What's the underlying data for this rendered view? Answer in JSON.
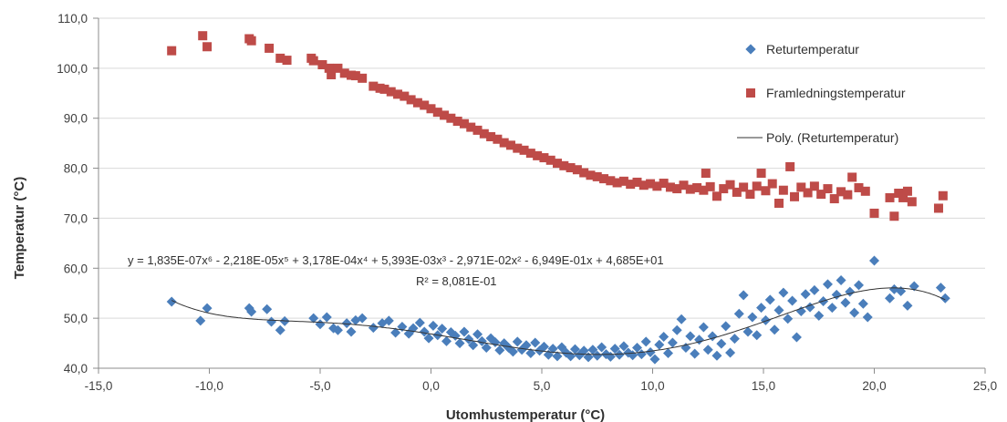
{
  "chart_data": {
    "type": "scatter",
    "xlabel": "Utomhustemperatur (°C)",
    "ylabel": "Temperatur (°C)",
    "xlim": [
      -15,
      25
    ],
    "ylim": [
      40,
      110
    ],
    "x_ticks": [
      -15,
      -10,
      -5,
      0,
      5,
      10,
      15,
      20,
      25
    ],
    "x_tick_labels": [
      "-15,0",
      "-10,0",
      "-5,0",
      "0,0",
      "5,0",
      "10,0",
      "15,0",
      "20,0",
      "25,0"
    ],
    "y_ticks": [
      40,
      50,
      60,
      70,
      80,
      90,
      100,
      110
    ],
    "y_tick_labels": [
      "40,0",
      "50,0",
      "60,0",
      "70,0",
      "80,0",
      "90,0",
      "100,0",
      "110,0"
    ],
    "grid": "horizontal",
    "legend_position": "top-right",
    "series": [
      {
        "name": "Returtemperatur",
        "marker": "diamond",
        "color": "#4a7ebb",
        "points": [
          [
            -11.7,
            53.3
          ],
          [
            -10.4,
            49.5
          ],
          [
            -10.1,
            52
          ],
          [
            -8.2,
            52
          ],
          [
            -8.1,
            51.3
          ],
          [
            -7.4,
            51.8
          ],
          [
            -7.2,
            49.3
          ],
          [
            -6.8,
            47.6
          ],
          [
            -6.6,
            49.4
          ],
          [
            -5.3,
            50
          ],
          [
            -5,
            48.8
          ],
          [
            -4.7,
            50.2
          ],
          [
            -4.4,
            48
          ],
          [
            -4.2,
            47.6
          ],
          [
            -3.8,
            49
          ],
          [
            -3.6,
            47.3
          ],
          [
            -3.4,
            49.6
          ],
          [
            -3.1,
            50
          ],
          [
            -2.6,
            48.1
          ],
          [
            -2.2,
            49
          ],
          [
            -1.9,
            49.5
          ],
          [
            -1.6,
            47.1
          ],
          [
            -1.3,
            48.3
          ],
          [
            -1,
            46.9
          ],
          [
            -0.8,
            48
          ],
          [
            -0.5,
            49.1
          ],
          [
            -0.3,
            47.3
          ],
          [
            -0.1,
            46
          ],
          [
            0.1,
            48.5
          ],
          [
            0.3,
            46.6
          ],
          [
            0.5,
            47.9
          ],
          [
            0.7,
            45.4
          ],
          [
            0.9,
            47.2
          ],
          [
            1.1,
            46.5
          ],
          [
            1.3,
            45
          ],
          [
            1.5,
            47.3
          ],
          [
            1.7,
            45.8
          ],
          [
            1.9,
            44.6
          ],
          [
            2.1,
            46.8
          ],
          [
            2.3,
            45.4
          ],
          [
            2.5,
            44.1
          ],
          [
            2.7,
            46
          ],
          [
            2.9,
            45.2
          ],
          [
            3.1,
            43.6
          ],
          [
            3.3,
            45
          ],
          [
            3.5,
            44.1
          ],
          [
            3.7,
            43.3
          ],
          [
            3.9,
            45.3
          ],
          [
            4.1,
            43.7
          ],
          [
            4.3,
            44.6
          ],
          [
            4.5,
            43
          ],
          [
            4.7,
            45.1
          ],
          [
            4.9,
            43.5
          ],
          [
            5.1,
            44.3
          ],
          [
            5.3,
            42.7
          ],
          [
            5.5,
            43.9
          ],
          [
            5.7,
            42.4
          ],
          [
            5.9,
            44.2
          ],
          [
            6.1,
            43.1
          ],
          [
            6.3,
            42.4
          ],
          [
            6.5,
            43.8
          ],
          [
            6.7,
            42.6
          ],
          [
            6.9,
            43.5
          ],
          [
            7.1,
            42.2
          ],
          [
            7.3,
            43.7
          ],
          [
            7.5,
            42.5
          ],
          [
            7.7,
            44.2
          ],
          [
            7.9,
            42.8
          ],
          [
            8.1,
            42.3
          ],
          [
            8.3,
            43.9
          ],
          [
            8.5,
            42.7
          ],
          [
            8.7,
            44.4
          ],
          [
            8.9,
            43.1
          ],
          [
            9.1,
            42.6
          ],
          [
            9.3,
            44.1
          ],
          [
            9.5,
            42.8
          ],
          [
            9.7,
            45.3
          ],
          [
            9.9,
            43.2
          ],
          [
            10.1,
            41.8
          ],
          [
            10.3,
            44.7
          ],
          [
            10.5,
            46.3
          ],
          [
            10.7,
            43
          ],
          [
            10.9,
            45.1
          ],
          [
            11.1,
            47.6
          ],
          [
            11.3,
            49.8
          ],
          [
            11.5,
            44.1
          ],
          [
            11.7,
            46.4
          ],
          [
            11.9,
            42.9
          ],
          [
            12.1,
            45.7
          ],
          [
            12.3,
            48.2
          ],
          [
            12.5,
            43.7
          ],
          [
            12.7,
            46.4
          ],
          [
            12.9,
            42.5
          ],
          [
            13.1,
            44.9
          ],
          [
            13.3,
            48.4
          ],
          [
            13.5,
            43.1
          ],
          [
            13.7,
            45.9
          ],
          [
            13.9,
            50.9
          ],
          [
            14.1,
            54.6
          ],
          [
            14.3,
            47.3
          ],
          [
            14.5,
            50.2
          ],
          [
            14.7,
            46.6
          ],
          [
            14.9,
            52.1
          ],
          [
            15.1,
            49.6
          ],
          [
            15.3,
            53.7
          ],
          [
            15.5,
            47.7
          ],
          [
            15.7,
            51.6
          ],
          [
            15.9,
            55.1
          ],
          [
            16.1,
            49.9
          ],
          [
            16.3,
            53.5
          ],
          [
            16.5,
            46.2
          ],
          [
            16.7,
            51.4
          ],
          [
            16.9,
            54.8
          ],
          [
            17.1,
            52.2
          ],
          [
            17.3,
            55.6
          ],
          [
            17.5,
            50.5
          ],
          [
            17.7,
            53.4
          ],
          [
            17.9,
            56.8
          ],
          [
            18.1,
            52.1
          ],
          [
            18.3,
            54.7
          ],
          [
            18.5,
            57.6
          ],
          [
            18.7,
            53.1
          ],
          [
            18.9,
            55.3
          ],
          [
            19.1,
            51.1
          ],
          [
            19.3,
            56.6
          ],
          [
            19.5,
            52.9
          ],
          [
            19.7,
            50.2
          ],
          [
            20,
            61.5
          ],
          [
            20.7,
            54
          ],
          [
            20.9,
            55.8
          ],
          [
            21.2,
            55.4
          ],
          [
            21.5,
            52.5
          ],
          [
            21.8,
            56.4
          ],
          [
            23,
            56.1
          ],
          [
            23.2,
            54
          ]
        ]
      },
      {
        "name": "Framledningstemperatur",
        "marker": "square",
        "color": "#be4b48",
        "points": [
          [
            -11.7,
            103.5
          ],
          [
            -10.3,
            106.5
          ],
          [
            -10.1,
            104.3
          ],
          [
            -8.2,
            105.9
          ],
          [
            -8.1,
            105.5
          ],
          [
            -7.3,
            104
          ],
          [
            -6.8,
            102
          ],
          [
            -6.5,
            101.6
          ],
          [
            -5.4,
            102
          ],
          [
            -5.3,
            101.5
          ],
          [
            -4.9,
            100.7
          ],
          [
            -4.6,
            100
          ],
          [
            -4.5,
            98.7
          ],
          [
            -4.2,
            100
          ],
          [
            -3.9,
            99
          ],
          [
            -3.6,
            98.6
          ],
          [
            -3.4,
            98.5
          ],
          [
            -3.1,
            98
          ],
          [
            -2.6,
            96.4
          ],
          [
            -2.3,
            96
          ],
          [
            -2.1,
            95.8
          ],
          [
            -1.8,
            95.3
          ],
          [
            -1.5,
            94.8
          ],
          [
            -1.2,
            94.4
          ],
          [
            -0.9,
            93.7
          ],
          [
            -0.6,
            93.1
          ],
          [
            -0.3,
            92.6
          ],
          [
            0,
            91.9
          ],
          [
            0.3,
            91.2
          ],
          [
            0.6,
            90.6
          ],
          [
            0.9,
            90
          ],
          [
            1.2,
            89.4
          ],
          [
            1.5,
            88.9
          ],
          [
            1.8,
            88.2
          ],
          [
            2.1,
            87.6
          ],
          [
            2.4,
            86.9
          ],
          [
            2.7,
            86.3
          ],
          [
            3,
            85.8
          ],
          [
            3.3,
            85.1
          ],
          [
            3.6,
            84.6
          ],
          [
            3.9,
            84
          ],
          [
            4.2,
            83.6
          ],
          [
            4.5,
            83
          ],
          [
            4.8,
            82.5
          ],
          [
            5.1,
            82.1
          ],
          [
            5.4,
            81.6
          ],
          [
            5.7,
            81
          ],
          [
            6,
            80.5
          ],
          [
            6.3,
            80.1
          ],
          [
            6.6,
            79.7
          ],
          [
            6.9,
            79.1
          ],
          [
            7.2,
            78.6
          ],
          [
            7.5,
            78.3
          ],
          [
            7.8,
            77.9
          ],
          [
            8.1,
            77.5
          ],
          [
            8.4,
            77.1
          ],
          [
            8.7,
            77.4
          ],
          [
            9,
            76.8
          ],
          [
            9.3,
            77.2
          ],
          [
            9.6,
            76.6
          ],
          [
            9.9,
            76.9
          ],
          [
            10.2,
            76.4
          ],
          [
            10.5,
            77
          ],
          [
            10.8,
            76.2
          ],
          [
            11.1,
            75.9
          ],
          [
            11.4,
            76.6
          ],
          [
            11.7,
            75.8
          ],
          [
            12,
            76.1
          ],
          [
            12.3,
            75.6
          ],
          [
            12.4,
            79
          ],
          [
            12.6,
            76.3
          ],
          [
            12.9,
            74.4
          ],
          [
            13.2,
            75.9
          ],
          [
            13.5,
            76.7
          ],
          [
            13.8,
            75.2
          ],
          [
            14.1,
            76.2
          ],
          [
            14.4,
            74.8
          ],
          [
            14.7,
            76.4
          ],
          [
            14.9,
            79
          ],
          [
            15.1,
            75.5
          ],
          [
            15.4,
            76.9
          ],
          [
            15.7,
            73
          ],
          [
            15.9,
            75.6
          ],
          [
            16.2,
            80.3
          ],
          [
            16.4,
            74.3
          ],
          [
            16.7,
            76.2
          ],
          [
            17,
            75.1
          ],
          [
            17.3,
            76.4
          ],
          [
            17.6,
            74.8
          ],
          [
            17.9,
            75.9
          ],
          [
            18.2,
            73.9
          ],
          [
            18.5,
            75.3
          ],
          [
            18.8,
            74.7
          ],
          [
            19,
            78.2
          ],
          [
            19.3,
            76.1
          ],
          [
            19.6,
            75.4
          ],
          [
            20,
            71
          ],
          [
            20.7,
            74.1
          ],
          [
            20.9,
            70.4
          ],
          [
            21.1,
            75
          ],
          [
            21.3,
            74.1
          ],
          [
            21.5,
            75.4
          ],
          [
            21.7,
            73.3
          ],
          [
            22.9,
            72
          ],
          [
            23.1,
            74.5
          ]
        ]
      }
    ],
    "trendline": {
      "name": "Poly. (Returtemperatur)",
      "color": "#333333",
      "coefficients": [
        46.85,
        -0.6949,
        -0.02971,
        0.005393,
        0.0003178,
        -2.218e-05,
        1.835e-07
      ],
      "equation": "y = 1,835E-07x⁶ - 2,218E-05x⁵ + 3,178E-04x⁴ + 5,393E-03x³ - 2,971E-02x² - 6,949E-01x + 4,685E+01",
      "r2": "R² = 8,081E-01"
    }
  }
}
